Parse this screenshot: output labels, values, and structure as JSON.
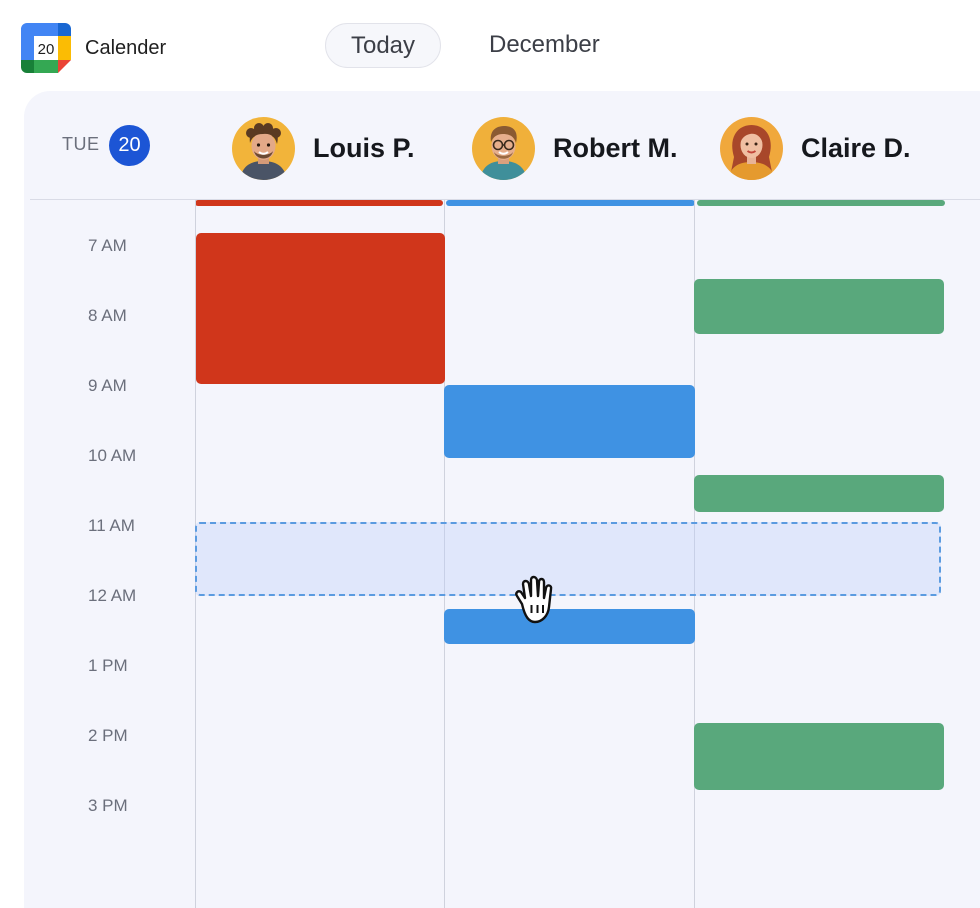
{
  "app": {
    "title": "Calender",
    "logo_day": "20",
    "logo_icon": "google-calendar-icon"
  },
  "toolbar": {
    "today_label": "Today",
    "month_label": "December"
  },
  "day": {
    "weekday": "TUE",
    "date": "20"
  },
  "people": [
    {
      "name": "Louis P.",
      "color": "#d0361b"
    },
    {
      "name": "Robert M.",
      "color": "#3f92e3"
    },
    {
      "name": "Claire D.",
      "color": "#59a87c"
    }
  ],
  "times": [
    "7 AM",
    "8 AM",
    "9 AM",
    "10 AM",
    "11 AM",
    "12 AM",
    "1 PM",
    "2 PM",
    "3 PM"
  ],
  "selection": {
    "state": "dragging",
    "cursor_icon": "grab-hand-icon"
  }
}
